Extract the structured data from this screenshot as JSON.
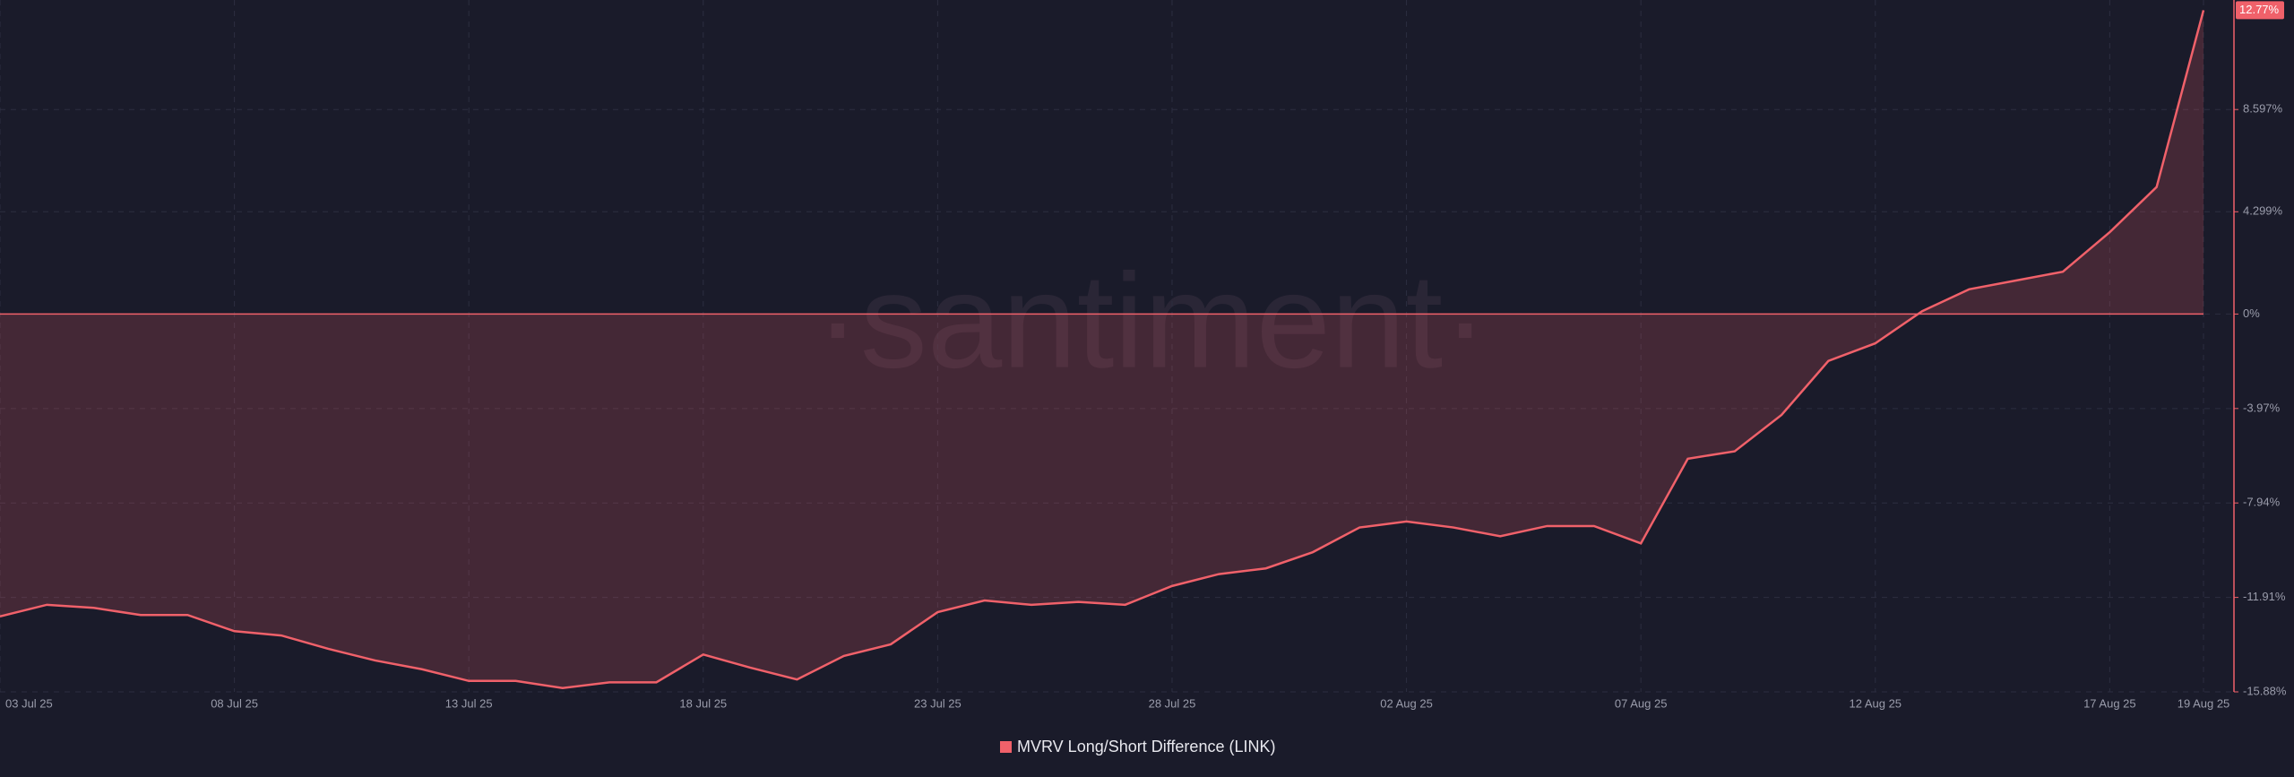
{
  "chart_data": {
    "type": "area-line",
    "watermark": "·santiment·",
    "categories": [
      "03 Jul 25",
      null,
      null,
      null,
      null,
      "08 Jul 25",
      null,
      null,
      null,
      null,
      "13 Jul 25",
      null,
      null,
      null,
      null,
      "18 Jul 25",
      null,
      null,
      null,
      null,
      "23 Jul 25",
      null,
      null,
      null,
      null,
      "28 Jul 25",
      null,
      null,
      null,
      null,
      "02 Aug 25",
      null,
      null,
      null,
      null,
      "07 Aug 25",
      null,
      null,
      null,
      null,
      "12 Aug 25",
      null,
      null,
      null,
      null,
      "17 Aug 25",
      null,
      "19 Aug 25"
    ],
    "series": [
      {
        "name": "MVRV Long/Short Difference (LINK)",
        "color": "#f0616a",
        "values": [
          -12.71,
          -12.22,
          -12.35,
          -12.65,
          -12.65,
          -13.33,
          -13.51,
          -14.07,
          -14.56,
          -14.93,
          -15.42,
          -15.42,
          -15.72,
          -15.48,
          -15.48,
          -14.31,
          -14.86,
          -15.36,
          -14.37,
          -13.88,
          -12.53,
          -12.04,
          -12.22,
          -12.1,
          -12.22,
          -11.43,
          -10.93,
          -10.69,
          -10.01,
          -8.97,
          -8.72,
          -8.97,
          -9.34,
          -8.91,
          -8.91,
          -9.64,
          -6.08,
          -5.77,
          -4.24,
          -1.97,
          -1.23,
          0.12,
          1.04,
          1.41,
          1.78,
          3.44,
          5.34,
          12.77
        ],
        "value_labels": [
          null,
          null,
          null,
          null,
          null,
          null,
          null,
          null,
          null,
          null,
          null,
          null,
          null,
          null,
          null,
          null,
          null,
          null,
          null,
          null,
          null,
          null,
          null,
          null,
          null,
          null,
          null,
          null,
          null,
          null,
          null,
          null,
          null,
          null,
          null,
          null,
          null,
          null,
          null,
          null,
          null,
          null,
          null,
          null,
          null,
          null,
          null,
          "12.77%"
        ]
      }
    ],
    "ylim": [
      -15.88,
      13.2
    ],
    "yticks": [
      {
        "value": 8.597,
        "label": "8.597%"
      },
      {
        "value": 4.299,
        "label": "4.299%"
      },
      {
        "value": 0,
        "label": "0%"
      },
      {
        "value": -3.97,
        "label": "-3.97%"
      },
      {
        "value": -7.94,
        "label": "-7.94%"
      },
      {
        "value": -11.91,
        "label": "-11.91%"
      },
      {
        "value": -15.88,
        "label": "-15.88%"
      }
    ],
    "grid": true,
    "legend": "bottom"
  }
}
